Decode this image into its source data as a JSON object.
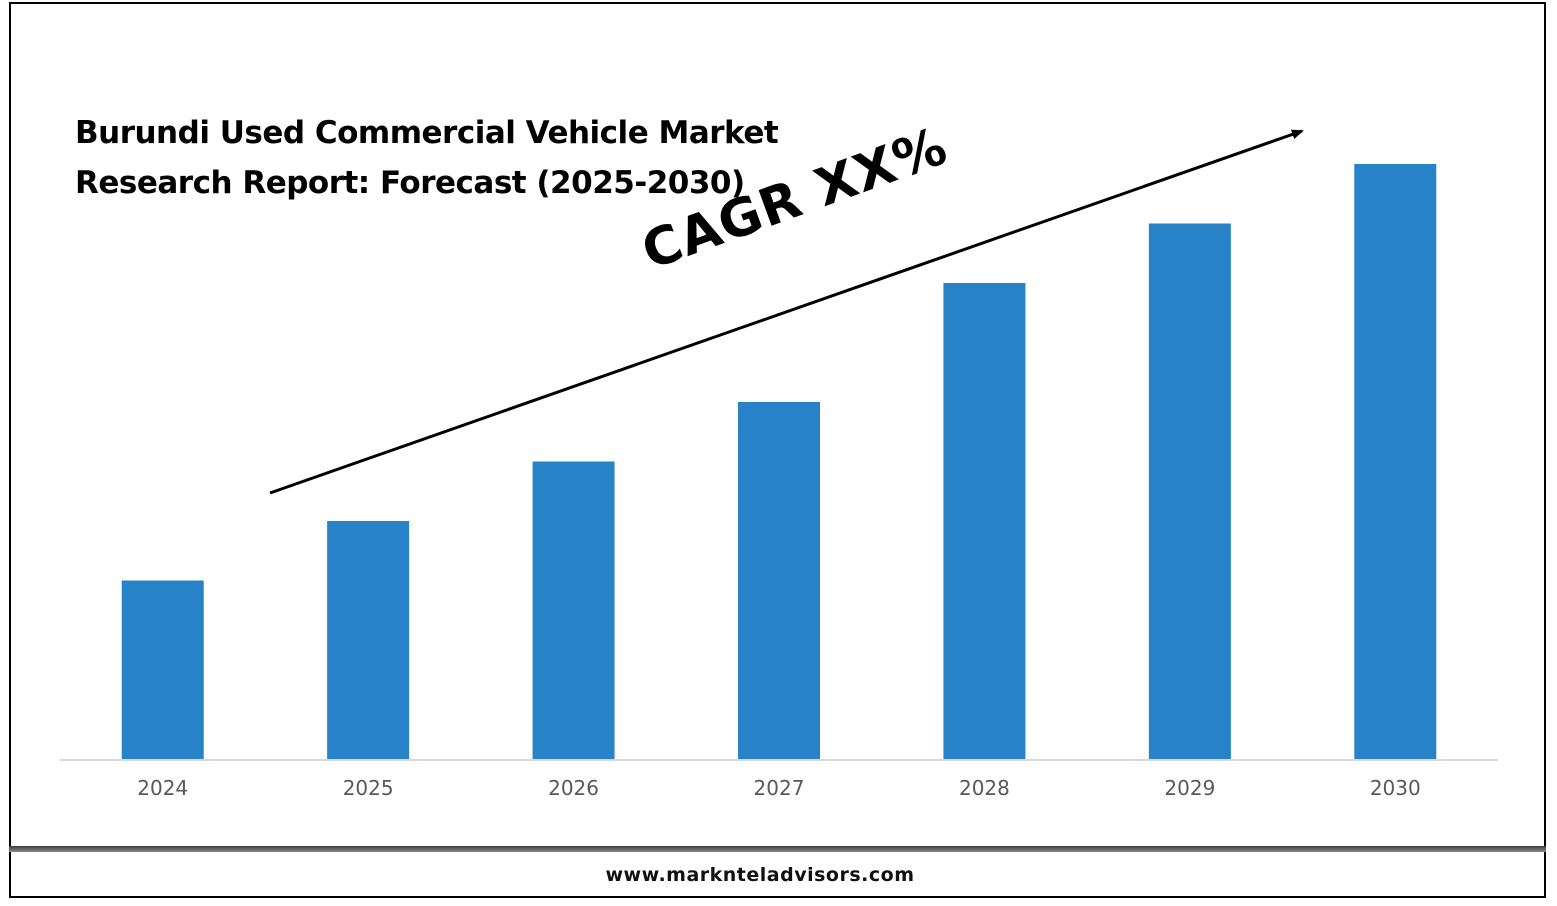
{
  "title_lines": [
    "Burundi Used Commercial Vehicle Market",
    "Research Report: Forecast (2025-2030)"
  ],
  "annotation": "CAGR XX%",
  "footer": {
    "url": "www.marknteladvisors.com"
  },
  "colors": {
    "bar": "#2882C8",
    "axis": "#D9D9D9",
    "text": "#000000",
    "tick": "#595959"
  },
  "chart_data": {
    "type": "bar",
    "title": "Burundi Used Commercial Vehicle Market Research Report: Forecast (2025-2030)",
    "categories": [
      "2024",
      "2025",
      "2026",
      "2027",
      "2028",
      "2029",
      "2030"
    ],
    "values": [
      30,
      40,
      50,
      60,
      80,
      90,
      100
    ],
    "ylim": [
      0,
      100
    ],
    "xlabel": "",
    "ylabel": "",
    "grid": false,
    "legend": "none",
    "annotations": [
      "CAGR XX%"
    ]
  }
}
